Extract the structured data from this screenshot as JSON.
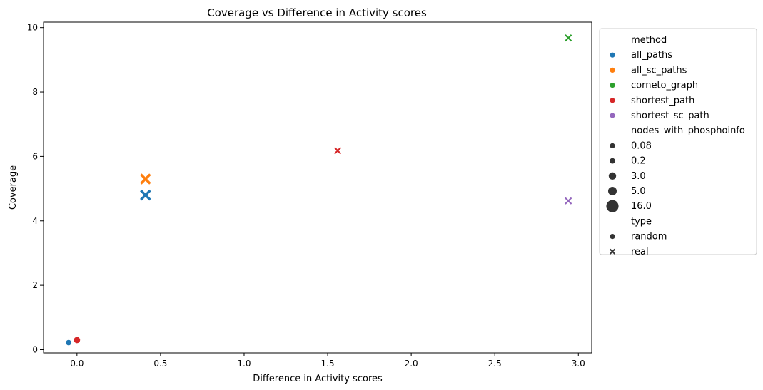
{
  "chart_data": {
    "type": "scatter",
    "title": "Coverage vs Difference in Activity scores",
    "xlabel": "Difference in Activity scores",
    "ylabel": "Coverage",
    "xlim": [
      -0.2,
      3.08
    ],
    "ylim": [
      -0.1,
      10.17
    ],
    "xticks": [
      0.0,
      0.5,
      1.0,
      1.5,
      2.0,
      2.5,
      3.0
    ],
    "xtick_labels": [
      "0.0",
      "0.5",
      "1.0",
      "1.5",
      "2.0",
      "2.5",
      "3.0"
    ],
    "yticks": [
      0,
      2,
      4,
      6,
      8,
      10
    ],
    "ytick_labels": [
      "0",
      "2",
      "4",
      "6",
      "8",
      "10"
    ],
    "grid": false,
    "legend_position": "outside-right",
    "legend": {
      "hue_title": "method",
      "methods": [
        {
          "name": "all_paths",
          "color": "#1f77b4"
        },
        {
          "name": "all_sc_paths",
          "color": "#ff7f0e"
        },
        {
          "name": "corneto_graph",
          "color": "#2ca02c"
        },
        {
          "name": "shortest_path",
          "color": "#d62728"
        },
        {
          "name": "shortest_sc_path",
          "color": "#9467bd"
        }
      ],
      "size_title": "nodes_with_phosphoinfo",
      "sizes": [
        "0.08",
        "0.2",
        "3.0",
        "5.0",
        "16.0"
      ],
      "style_title": "type",
      "styles": [
        {
          "name": "random",
          "marker": "circle"
        },
        {
          "name": "real",
          "marker": "x"
        }
      ]
    },
    "points": [
      {
        "method": "all_paths",
        "type": "random",
        "nodes_with_phosphoinfo": 0.08,
        "x": -0.05,
        "y": 0.22
      },
      {
        "method": "shortest_path",
        "type": "random",
        "nodes_with_phosphoinfo": 0.2,
        "x": 0.0,
        "y": 0.3
      },
      {
        "method": "all_paths",
        "type": "real",
        "nodes_with_phosphoinfo": 16.0,
        "x": 0.41,
        "y": 4.8
      },
      {
        "method": "all_sc_paths",
        "type": "real",
        "nodes_with_phosphoinfo": 16.0,
        "x": 0.41,
        "y": 5.3
      },
      {
        "method": "shortest_path",
        "type": "real",
        "nodes_with_phosphoinfo": 3.0,
        "x": 1.56,
        "y": 6.18
      },
      {
        "method": "corneto_graph",
        "type": "real",
        "nodes_with_phosphoinfo": 3.0,
        "x": 2.94,
        "y": 9.68
      },
      {
        "method": "shortest_sc_path",
        "type": "real",
        "nodes_with_phosphoinfo": 3.0,
        "x": 2.94,
        "y": 4.62
      }
    ]
  }
}
